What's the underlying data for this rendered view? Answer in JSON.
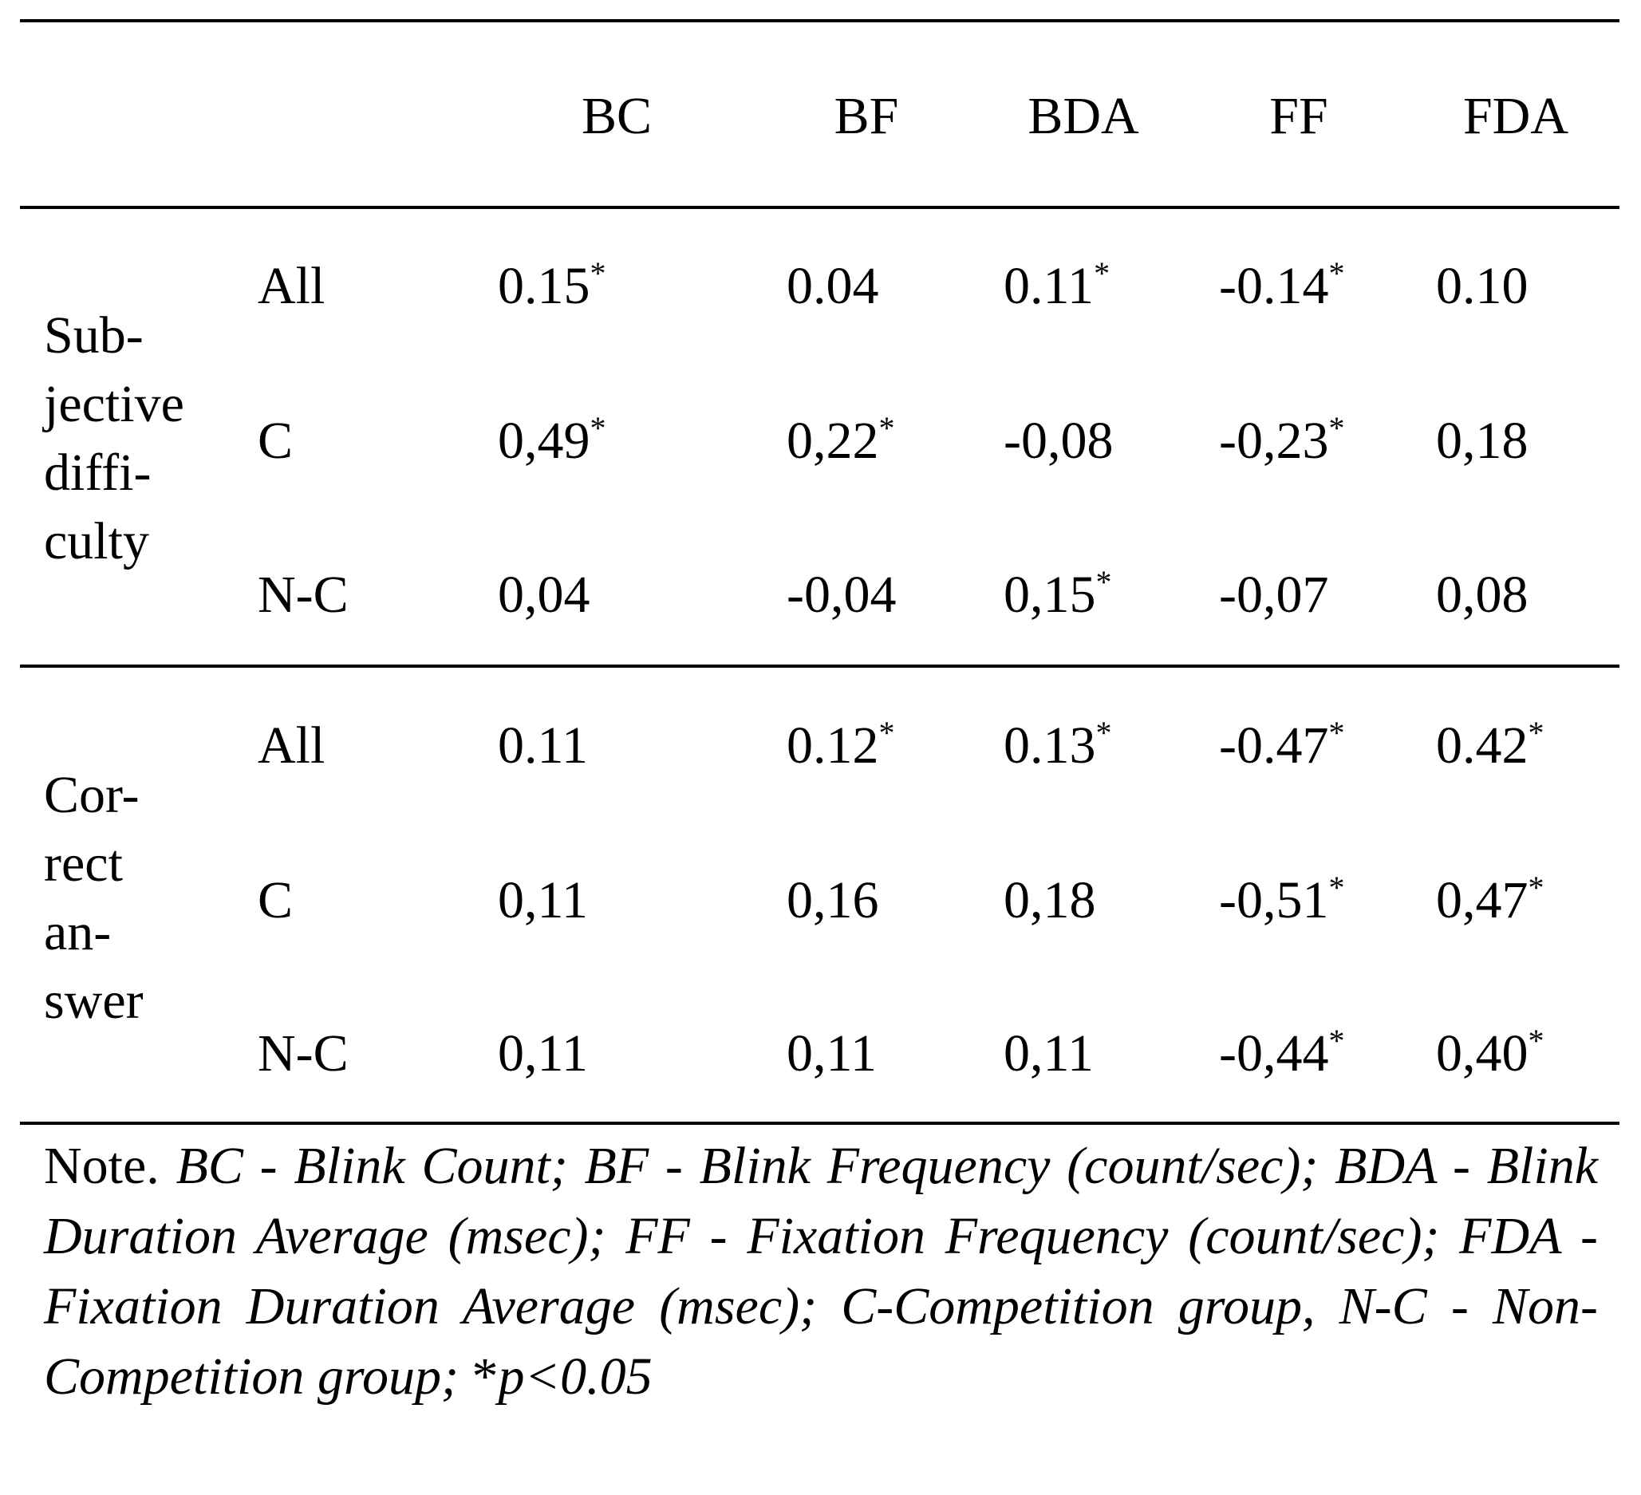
{
  "columns": [
    "BC",
    "BF",
    "BDA",
    "FF",
    "FDA"
  ],
  "groups": [
    {
      "label_lines": [
        "Sub-",
        "jective",
        "diffi-",
        "culty"
      ],
      "rows": [
        {
          "label": "All",
          "values": [
            {
              "v": "0.15",
              "sig": "*"
            },
            {
              "v": "0.04",
              "sig": ""
            },
            {
              "v": "0.11",
              "sig": "*"
            },
            {
              "v": "-0.14",
              "sig": "*"
            },
            {
              "v": "0.10",
              "sig": ""
            }
          ]
        },
        {
          "label": "C",
          "values": [
            {
              "v": "0,49",
              "sig": "*"
            },
            {
              "v": "0,22",
              "sig": "*"
            },
            {
              "v": "-0,08",
              "sig": ""
            },
            {
              "v": "-0,23",
              "sig": "*"
            },
            {
              "v": "0,18",
              "sig": ""
            }
          ]
        },
        {
          "label": "N-C",
          "values": [
            {
              "v": "0,04",
              "sig": ""
            },
            {
              "v": "-0,04",
              "sig": ""
            },
            {
              "v": "0,15",
              "sig": "*"
            },
            {
              "v": "-0,07",
              "sig": ""
            },
            {
              "v": "0,08",
              "sig": ""
            }
          ]
        }
      ]
    },
    {
      "label_lines": [
        "Cor-",
        "rect",
        "an-",
        "swer"
      ],
      "rows": [
        {
          "label": "All",
          "values": [
            {
              "v": "0.11",
              "sig": ""
            },
            {
              "v": "0.12",
              "sig": "*"
            },
            {
              "v": "0.13",
              "sig": "*"
            },
            {
              "v": "-0.47",
              "sig": "*"
            },
            {
              "v": "0.42",
              "sig": "*"
            }
          ]
        },
        {
          "label": "C",
          "values": [
            {
              "v": "0,11",
              "sig": ""
            },
            {
              "v": "0,16",
              "sig": ""
            },
            {
              "v": "0,18",
              "sig": ""
            },
            {
              "v": "-0,51",
              "sig": "*"
            },
            {
              "v": "0,47",
              "sig": "*"
            }
          ]
        },
        {
          "label": "N-C",
          "values": [
            {
              "v": "0,11",
              "sig": ""
            },
            {
              "v": "0,11",
              "sig": ""
            },
            {
              "v": "0,11",
              "sig": ""
            },
            {
              "v": "-0,44",
              "sig": "*"
            },
            {
              "v": "0,40",
              "sig": "*"
            }
          ]
        }
      ]
    }
  ],
  "note": {
    "prefix": "Note.",
    "body": "BC - Blink Count; BF - Blink Frequency (count/sec); BDA - Blink Duration Average (msec); FF - Fixation Frequency (count/sec); FDA - Fixation Duration Average (msec); C-Competition group, N-C - Non-Competition group;",
    "sig_prefix": "*",
    "sig_body": "p<0.05"
  }
}
